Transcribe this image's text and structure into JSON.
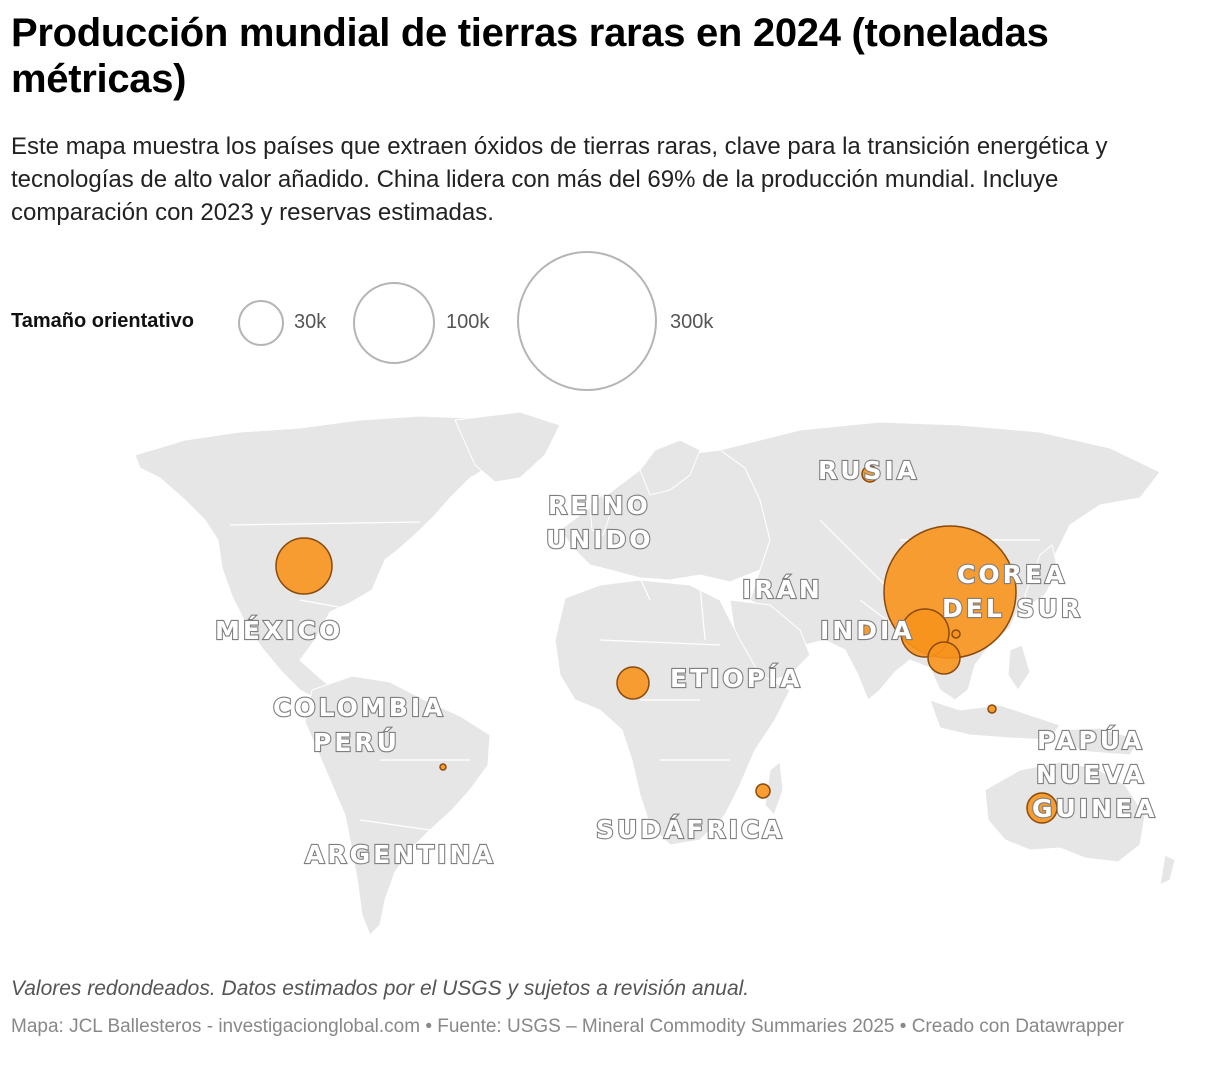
{
  "header": {
    "title": "Producción mundial de tierras raras en 2024 (toneladas métricas)",
    "description": "Este mapa muestra los países que extraen óxidos de tierras raras, clave para la transición energética y tecnologías de alto valor añadido. China lidera con más del 69% de la producción mundial. Incluye comparación con 2023 y reservas estimadas."
  },
  "legend": {
    "title": "Tamaño orientativo",
    "sizes": [
      {
        "label": "30k",
        "value": 30000
      },
      {
        "label": "100k",
        "value": 100000
      },
      {
        "label": "300k",
        "value": 300000
      }
    ]
  },
  "map": {
    "country_labels": {
      "rusia": "RUSIA",
      "reino_unido_1": "REINO",
      "reino_unido_2": "UNIDO",
      "iran": "IRÁN",
      "corea_1": "COREA",
      "corea_2": "DEL SUR",
      "india": "INDIA",
      "mexico": "MÉXICO",
      "etiopia": "ETIOPÍA",
      "colombia": "COLOMBIA",
      "peru": "PERÚ",
      "papua_1": "PAPÚA",
      "papua_2": "NUEVA",
      "papua_3": "GUINEA",
      "sudafrica": "SUDÁFRICA",
      "argentina": "ARGENTINA"
    },
    "bubble_fill": "#f7941d",
    "bubble_stroke": "#8a4a0b",
    "land_color": "#e6e6e6"
  },
  "footer": {
    "notes": "Valores redondeados. Datos estimados por el USGS y sujetos a revisión anual.",
    "source": "Mapa: JCL Ballesteros - investigacionglobal.com • Fuente: USGS – Mineral Commodity Summaries 2025 • Creado con Datawrapper"
  }
}
